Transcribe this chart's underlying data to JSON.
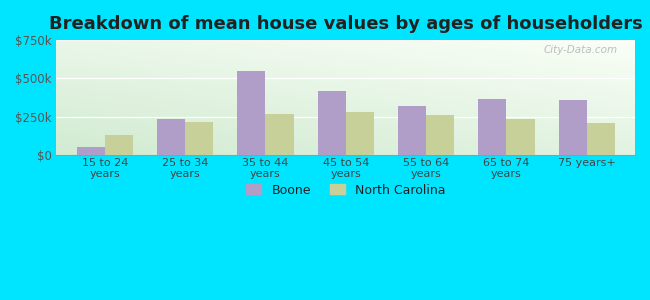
{
  "title": "Breakdown of mean house values by ages of householders",
  "categories": [
    "15 to 24\nyears",
    "25 to 34\nyears",
    "35 to 44\nyears",
    "45 to 54\nyears",
    "55 to 64\nyears",
    "65 to 74\nyears",
    "75 years+"
  ],
  "boone_values": [
    50000,
    237000,
    548000,
    418000,
    318000,
    368000,
    358000
  ],
  "nc_values": [
    128000,
    215000,
    268000,
    278000,
    258000,
    238000,
    208000
  ],
  "boone_color": "#b09ec9",
  "nc_color": "#c8d09a",
  "ylim": [
    0,
    750000
  ],
  "yticks": [
    0,
    250000,
    500000,
    750000
  ],
  "ytick_labels": [
    "$0",
    "$250k",
    "$500k",
    "$750k"
  ],
  "outer_bg": "#00e5ff",
  "legend_boone": "Boone",
  "legend_nc": "North Carolina",
  "watermark": "City-Data.com",
  "title_fontsize": 13,
  "bar_width": 0.35
}
